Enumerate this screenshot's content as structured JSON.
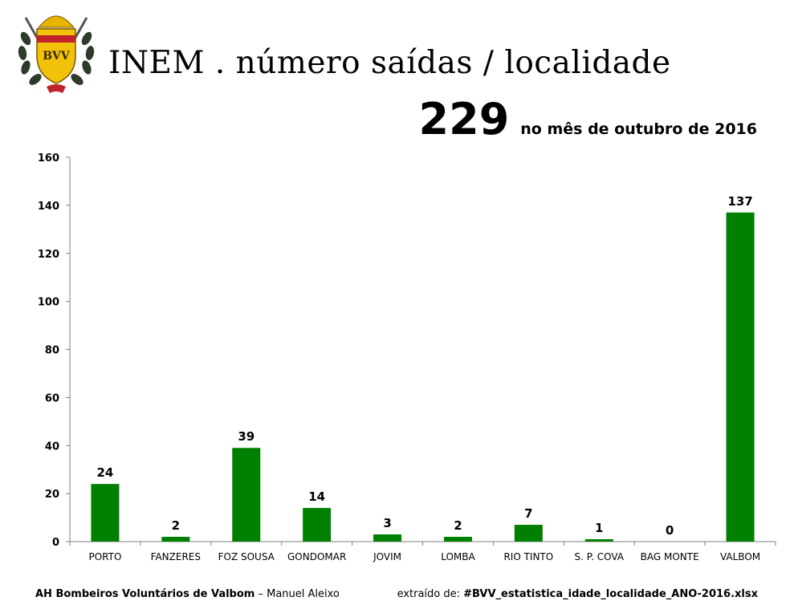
{
  "header": {
    "title": "INEM . número saídas / localidade",
    "total": "229",
    "period": "no mês de outubro de 2016"
  },
  "logo": {
    "icon": "firefighters-crest-icon",
    "letters": "BVV"
  },
  "colors": {
    "bar": "#008000",
    "axis": "#7f7f7f",
    "text": "#000000"
  },
  "chart_data": {
    "type": "bar",
    "title": "INEM . número saídas / localidade",
    "categories": [
      "PORTO",
      "FANZERES",
      "FOZ SOUSA",
      "GONDOMAR",
      "JOVIM",
      "LOMBA",
      "RIO TINTO",
      "S. P. COVA",
      "BAG MONTE",
      "VALBOM"
    ],
    "values": [
      24,
      2,
      39,
      14,
      3,
      2,
      7,
      1,
      0,
      137
    ],
    "ylim": [
      0,
      160
    ],
    "yticks": [
      0,
      20,
      40,
      60,
      80,
      100,
      120,
      140,
      160
    ],
    "grid": false,
    "legend": "none"
  },
  "footer": {
    "org": "AH Bombeiros Voluntários de Valbom",
    "sep": " – ",
    "author": "Manuel Aleixo",
    "source_prefix": "extraído de: ",
    "source_file": "#BVV_estatistica_idade_localidade_ANO-2016.xlsx"
  }
}
